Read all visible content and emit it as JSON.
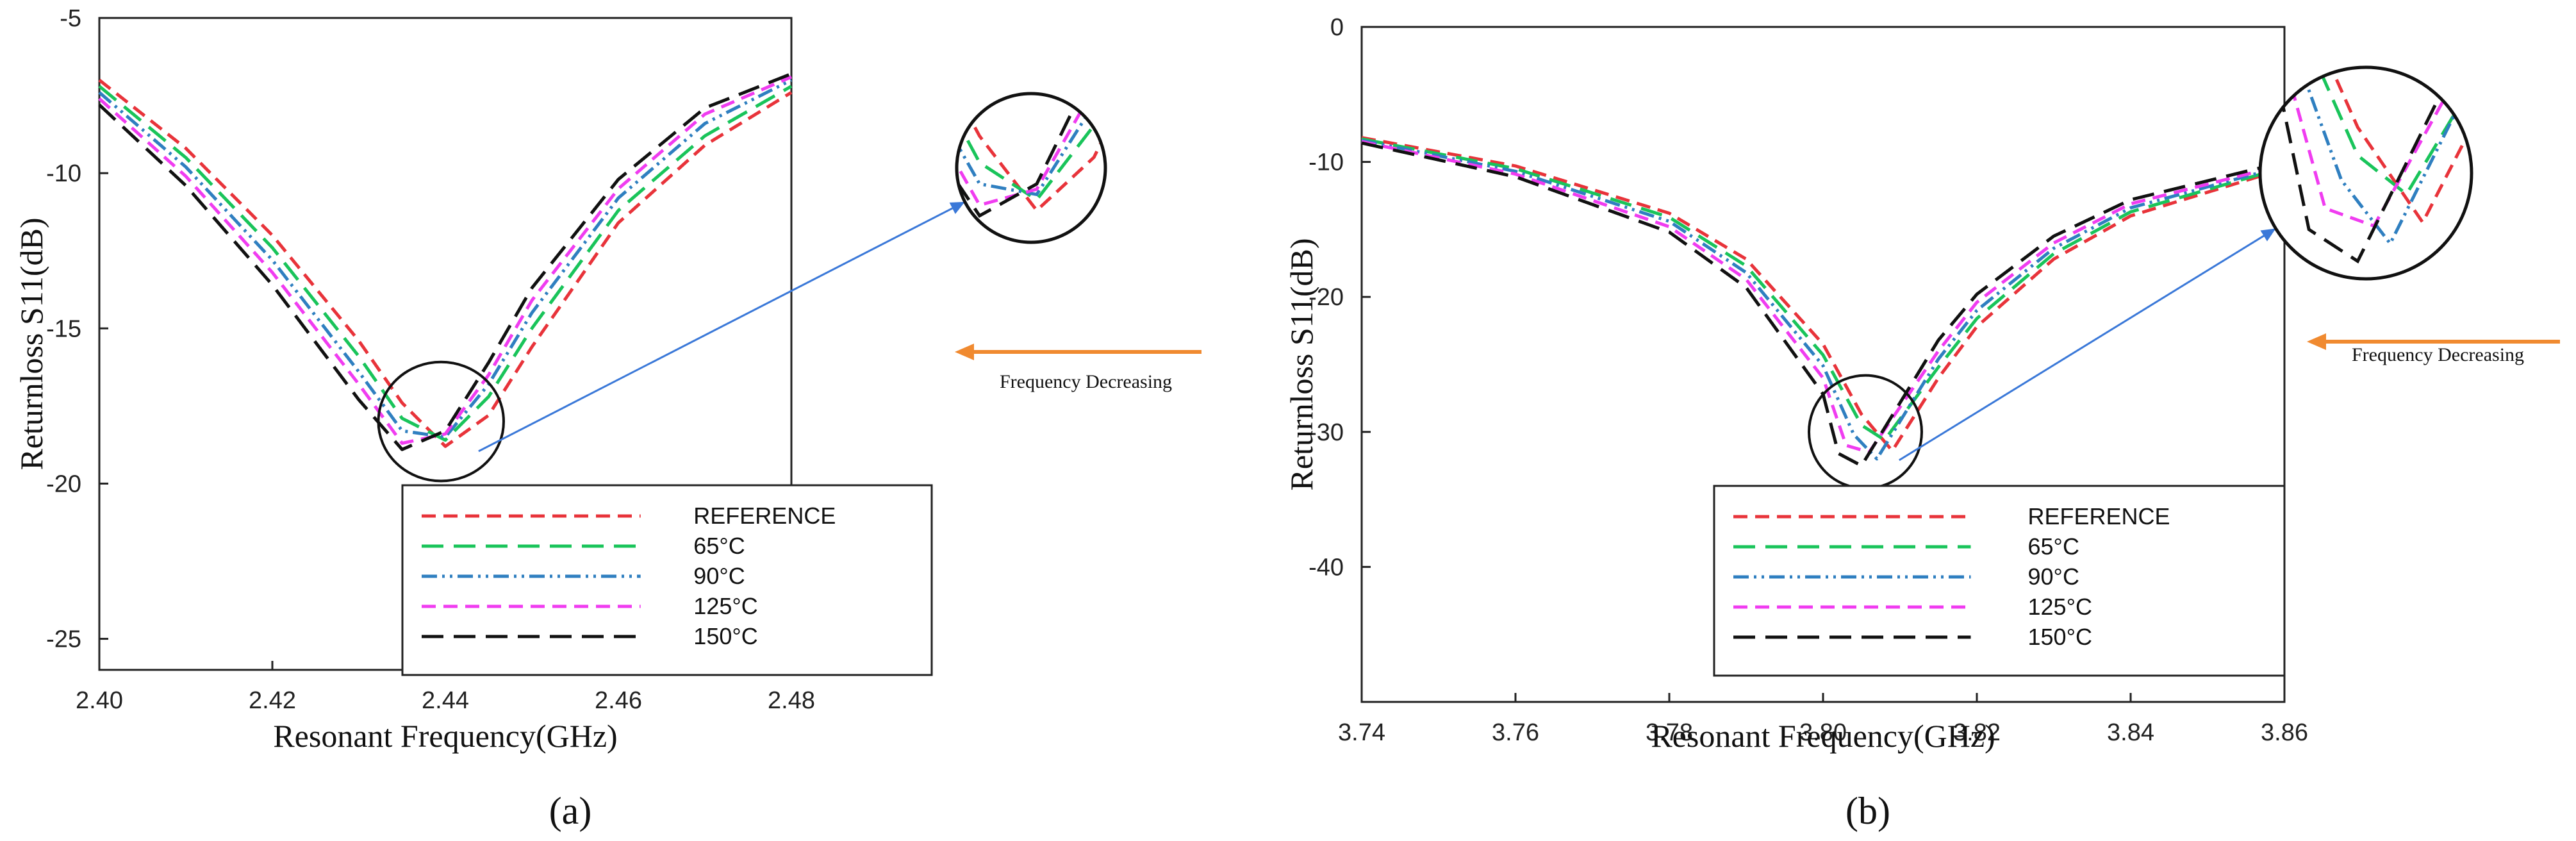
{
  "colors": {
    "REFERENCE": "#e8333a",
    "65C": "#19c45a",
    "90C": "#2f7fc0",
    "125C": "#f03cf0",
    "150C": "#111111",
    "annotation_arrow": "#f08a30",
    "zoom_leader": "#3a78d8"
  },
  "chart_data": [
    {
      "panel": "(a)",
      "type": "line",
      "xlabel": "Resonant Frequency(GHz)",
      "ylabel": "Returnloss S11(dB)",
      "xlim": [
        2.4,
        2.48
      ],
      "ylim": [
        -26,
        -5
      ],
      "xticks": [
        "2.40",
        "2.42",
        "2.44",
        "2.46",
        "2.48"
      ],
      "yticks": [
        "-5",
        "-10",
        "-15",
        "-20",
        "-25"
      ],
      "legend_position": "bottom-right",
      "annotation": "Frequency Decreasing",
      "series": [
        {
          "name": "REFERENCE",
          "key": "REFERENCE",
          "dash": "dashed",
          "x": [
            2.4,
            2.41,
            2.42,
            2.43,
            2.435,
            2.44,
            2.445,
            2.45,
            2.46,
            2.47,
            2.48
          ],
          "y": [
            -7.0,
            -9.2,
            -12.0,
            -15.4,
            -17.4,
            -18.8,
            -17.8,
            -15.6,
            -11.6,
            -9.1,
            -7.4
          ]
        },
        {
          "name": "65°C",
          "key": "65C",
          "dash": "long-dash",
          "x": [
            2.4,
            2.41,
            2.42,
            2.43,
            2.435,
            2.44,
            2.445,
            2.45,
            2.46,
            2.47,
            2.48
          ],
          "y": [
            -7.2,
            -9.5,
            -12.4,
            -15.9,
            -17.9,
            -18.6,
            -17.2,
            -15.0,
            -11.2,
            -8.8,
            -7.2
          ]
        },
        {
          "name": "90°C",
          "key": "90C",
          "dash": "dash-dot-dot",
          "x": [
            2.4,
            2.41,
            2.42,
            2.43,
            2.435,
            2.44,
            2.445,
            2.45,
            2.46,
            2.47,
            2.48
          ],
          "y": [
            -7.4,
            -9.8,
            -12.8,
            -16.4,
            -18.3,
            -18.5,
            -16.8,
            -14.5,
            -10.8,
            -8.4,
            -7.0
          ]
        },
        {
          "name": "125°C",
          "key": "125C",
          "dash": "dashed",
          "x": [
            2.4,
            2.41,
            2.42,
            2.43,
            2.435,
            2.44,
            2.445,
            2.45,
            2.46,
            2.47,
            2.48
          ],
          "y": [
            -7.6,
            -10.1,
            -13.2,
            -16.8,
            -18.7,
            -18.4,
            -16.5,
            -14.1,
            -10.5,
            -8.1,
            -6.9
          ]
        },
        {
          "name": "150°C",
          "key": "150C",
          "dash": "long-dash",
          "x": [
            2.4,
            2.41,
            2.42,
            2.43,
            2.435,
            2.44,
            2.445,
            2.45,
            2.46,
            2.47,
            2.48
          ],
          "y": [
            -7.8,
            -10.4,
            -13.6,
            -17.3,
            -18.9,
            -18.3,
            -16.1,
            -13.7,
            -10.2,
            -7.9,
            -6.8
          ]
        }
      ]
    },
    {
      "panel": "(b)",
      "type": "line",
      "xlabel": "Resonant Frequency(GHz)",
      "ylabel": "Returnloss S11(dB)",
      "xlim": [
        3.74,
        3.86
      ],
      "ylim": [
        -50,
        0
      ],
      "xticks": [
        "3.74",
        "3.76",
        "3.78",
        "3.80",
        "3.82",
        "3.84",
        "3.86"
      ],
      "yticks": [
        "0",
        "-10",
        "-20",
        "-30",
        "-40"
      ],
      "legend_position": "bottom-right",
      "annotation": "Frequency Decreasing",
      "series": [
        {
          "name": "REFERENCE",
          "key": "REFERENCE",
          "dash": "dashed",
          "x": [
            3.74,
            3.76,
            3.78,
            3.79,
            3.8,
            3.805,
            3.809,
            3.815,
            3.82,
            3.83,
            3.84,
            3.86
          ],
          "y": [
            -8.2,
            -10.3,
            -13.8,
            -17.2,
            -23.5,
            -28.7,
            -31.4,
            -26.0,
            -22.2,
            -17.2,
            -14.0,
            -10.5
          ]
        },
        {
          "name": "65°C",
          "key": "65C",
          "dash": "long-dash",
          "x": [
            3.74,
            3.76,
            3.78,
            3.79,
            3.8,
            3.805,
            3.808,
            3.815,
            3.82,
            3.83,
            3.84,
            3.86
          ],
          "y": [
            -8.3,
            -10.5,
            -14.1,
            -17.7,
            -24.3,
            -29.5,
            -30.6,
            -25.2,
            -21.6,
            -16.8,
            -13.7,
            -10.4
          ]
        },
        {
          "name": "90°C",
          "key": "90C",
          "dash": "dash-dot-dot",
          "x": [
            3.74,
            3.76,
            3.78,
            3.79,
            3.8,
            3.804,
            3.807,
            3.815,
            3.82,
            3.83,
            3.84,
            3.86
          ],
          "y": [
            -8.4,
            -10.7,
            -14.4,
            -18.2,
            -25.1,
            -30.2,
            -32.0,
            -24.6,
            -21.0,
            -16.4,
            -13.4,
            -10.3
          ]
        },
        {
          "name": "125°C",
          "key": "125C",
          "dash": "dashed",
          "x": [
            3.74,
            3.76,
            3.78,
            3.79,
            3.8,
            3.803,
            3.806,
            3.815,
            3.82,
            3.83,
            3.84,
            3.86
          ],
          "y": [
            -8.5,
            -10.9,
            -14.8,
            -18.7,
            -26.0,
            -31.0,
            -31.5,
            -24.0,
            -20.4,
            -16.0,
            -13.1,
            -10.2
          ]
        },
        {
          "name": "150°C",
          "key": "150C",
          "dash": "long-dash",
          "x": [
            3.74,
            3.76,
            3.78,
            3.79,
            3.8,
            3.802,
            3.805,
            3.815,
            3.82,
            3.83,
            3.84,
            3.86
          ],
          "y": [
            -8.6,
            -11.1,
            -15.2,
            -19.3,
            -27.2,
            -31.6,
            -32.5,
            -23.2,
            -19.8,
            -15.5,
            -12.8,
            -10.0
          ]
        }
      ]
    }
  ]
}
